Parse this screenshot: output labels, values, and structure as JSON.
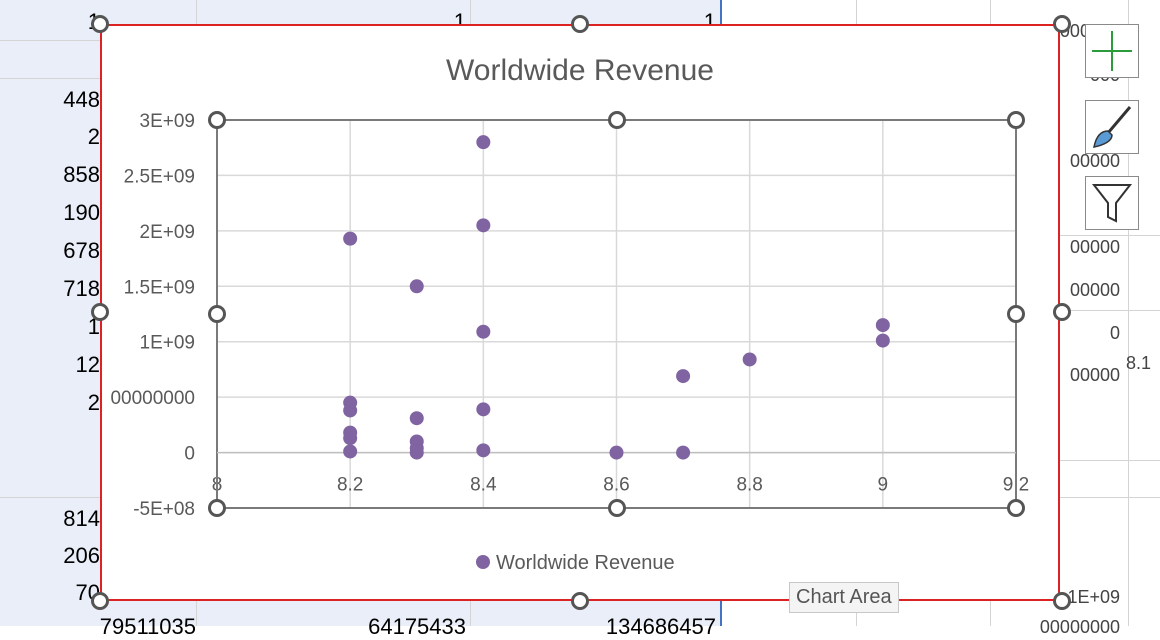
{
  "sheet": {
    "left_cells": [
      "1",
      "448",
      "2",
      "858",
      "190",
      "678",
      "718",
      "1",
      "12",
      "2",
      "814",
      "206",
      "70",
      "79511035"
    ],
    "mid_cells": [
      "1",
      "1",
      "64175433",
      "134686457"
    ],
    "right_cells": [
      "250000000",
      "000",
      "000",
      "00000",
      "000",
      "00000",
      "00000",
      "0",
      "00000",
      "8.1",
      "1E+09",
      "00000000"
    ]
  },
  "ui": {
    "tooltip": "Chart Area",
    "side_buttons": [
      "chart-elements",
      "chart-styles",
      "chart-filters"
    ]
  },
  "chart_data": {
    "type": "scatter",
    "title": "Worldwide Revenue",
    "xlim": [
      8,
      9.2
    ],
    "ylim": [
      -500000000,
      3000000000
    ],
    "x_ticks": [
      "8",
      "8.2",
      "8.4",
      "8.6",
      "8.8",
      "9",
      "9.2"
    ],
    "y_ticks": [
      "-5E+08",
      "0",
      "00000000",
      "1E+09",
      "1.5E+09",
      "2E+09",
      "2.5E+09",
      "3E+09"
    ],
    "grid": true,
    "legend": "bottom",
    "marker_color": "#8064a2",
    "series": [
      {
        "name": "Worldwide Revenue",
        "points": [
          [
            8.2,
            1930000000
          ],
          [
            8.2,
            450000000
          ],
          [
            8.2,
            380000000
          ],
          [
            8.2,
            180000000
          ],
          [
            8.2,
            130000000
          ],
          [
            8.2,
            10000000
          ],
          [
            8.3,
            1500000000
          ],
          [
            8.3,
            310000000
          ],
          [
            8.3,
            100000000
          ],
          [
            8.3,
            40000000
          ],
          [
            8.3,
            0
          ],
          [
            8.4,
            2800000000
          ],
          [
            8.4,
            2050000000
          ],
          [
            8.4,
            1090000000
          ],
          [
            8.4,
            390000000
          ],
          [
            8.4,
            20000000
          ],
          [
            8.6,
            0
          ],
          [
            8.7,
            690000000
          ],
          [
            8.7,
            0
          ],
          [
            8.8,
            840000000
          ],
          [
            9.0,
            1150000000
          ],
          [
            9.0,
            1010000000
          ]
        ]
      }
    ]
  }
}
